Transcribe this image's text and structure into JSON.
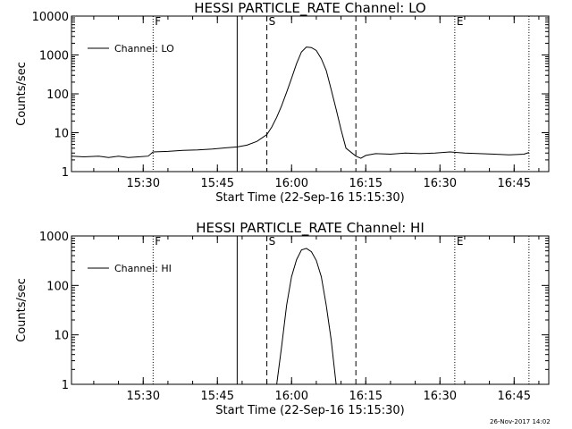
{
  "stamp": "26-Nov-2017 14:02",
  "chart_data": [
    {
      "type": "line",
      "title": "HESSI PARTICLE_RATE Channel: LO",
      "xlabel": "Start Time (22-Sep-16 15:15:30)",
      "ylabel": "Counts/sec",
      "yscale": "log",
      "xlim": [
        "15:15:30",
        "16:52"
      ],
      "ylim": [
        1,
        10000
      ],
      "xticks": [
        "15:30",
        "15:45",
        "16:00",
        "16:15",
        "16:30",
        "16:45"
      ],
      "yticks": [
        "1",
        "10",
        "100",
        "1000",
        "10000"
      ],
      "legend": "top-left",
      "vlines": [
        {
          "time": "15:32",
          "style": "dotted",
          "label": "F"
        },
        {
          "time": "15:49",
          "style": "solid",
          "label": ""
        },
        {
          "time": "15:55",
          "style": "dashed",
          "label": "S"
        },
        {
          "time": "16:13",
          "style": "dashed",
          "label": ""
        },
        {
          "time": "16:33",
          "style": "dotted",
          "label": "E"
        },
        {
          "time": "16:48",
          "style": "dotted",
          "label": ""
        }
      ],
      "series": [
        {
          "name": "Channel: LO",
          "x": [
            "15:15:30",
            "15:18",
            "15:21",
            "15:23",
            "15:25",
            "15:27",
            "15:29",
            "15:31",
            "15:32",
            "15:35",
            "15:38",
            "15:41",
            "15:44",
            "15:47",
            "15:49",
            "15:51",
            "15:53",
            "15:55",
            "15:56",
            "15:57",
            "15:58",
            "15:59",
            "16:00",
            "16:01",
            "16:02",
            "16:03",
            "16:04",
            "16:05",
            "16:06",
            "16:07",
            "16:08",
            "16:09",
            "16:10",
            "16:11",
            "16:13",
            "16:14",
            "16:15",
            "16:17",
            "16:20",
            "16:23",
            "16:26",
            "16:29",
            "16:32",
            "16:35",
            "16:38",
            "16:41",
            "16:44",
            "16:47",
            "16:48"
          ],
          "y": [
            2.5,
            2.4,
            2.5,
            2.3,
            2.5,
            2.3,
            2.4,
            2.5,
            3.2,
            3.3,
            3.5,
            3.6,
            3.8,
            4.1,
            4.3,
            4.8,
            6,
            9,
            14,
            25,
            50,
            110,
            250,
            600,
            1200,
            1600,
            1550,
            1300,
            800,
            400,
            130,
            40,
            12,
            4,
            2.5,
            2.2,
            2.6,
            2.9,
            2.8,
            3,
            2.9,
            3,
            3.2,
            3,
            2.9,
            2.8,
            2.7,
            2.8,
            3.1
          ]
        }
      ]
    },
    {
      "type": "line",
      "title": "HESSI PARTICLE_RATE Channel: HI",
      "xlabel": "Start Time (22-Sep-16 15:15:30)",
      "ylabel": "Counts/sec",
      "yscale": "log",
      "xlim": [
        "15:15:30",
        "16:52"
      ],
      "ylim": [
        1,
        1000
      ],
      "xticks": [
        "15:30",
        "15:45",
        "16:00",
        "16:15",
        "16:30",
        "16:45"
      ],
      "yticks": [
        "1",
        "10",
        "100",
        "1000"
      ],
      "legend": "top-left",
      "vlines": [
        {
          "time": "15:32",
          "style": "dotted",
          "label": "F"
        },
        {
          "time": "15:49",
          "style": "solid",
          "label": ""
        },
        {
          "time": "15:55",
          "style": "dashed",
          "label": "S"
        },
        {
          "time": "16:13",
          "style": "dashed",
          "label": ""
        },
        {
          "time": "16:33",
          "style": "dotted",
          "label": "E"
        },
        {
          "time": "16:48",
          "style": "dotted",
          "label": ""
        }
      ],
      "series": [
        {
          "name": "Channel: HI",
          "x": [
            "15:57",
            "15:58",
            "15:59",
            "16:00",
            "16:01",
            "16:02",
            "16:03",
            "16:04",
            "16:05",
            "16:06",
            "16:07",
            "16:08",
            "16:09"
          ],
          "y": [
            1,
            6,
            40,
            150,
            330,
            520,
            560,
            480,
            320,
            150,
            40,
            8,
            1
          ]
        }
      ]
    }
  ]
}
